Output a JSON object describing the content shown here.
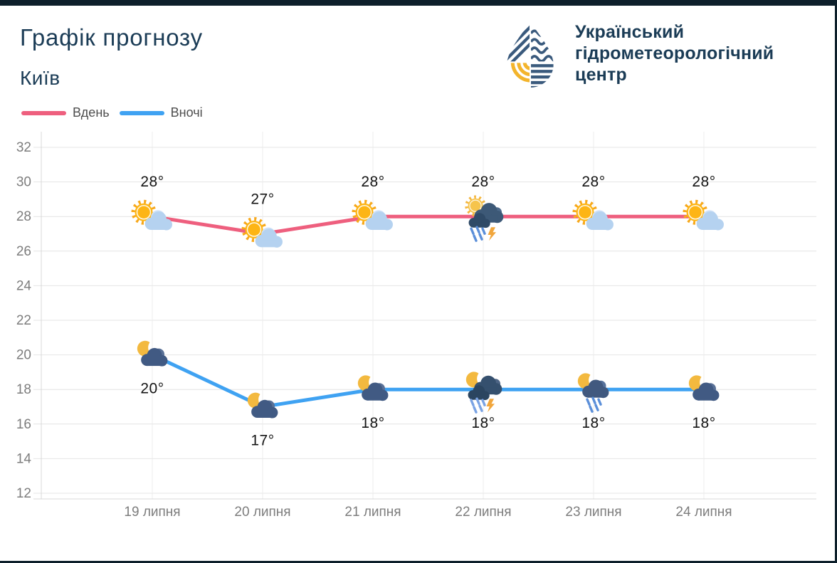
{
  "header": {
    "title": "Графік прогнозу",
    "subtitle": "Київ",
    "legend": [
      {
        "label": "Вдень",
        "color": "#ee5f7e"
      },
      {
        "label": "Вночі",
        "color": "#3fa2f2"
      }
    ]
  },
  "logo": {
    "line1": "Український",
    "line2": "гідрометеорологічний",
    "line3": "центр"
  },
  "colors": {
    "frame": "#0d1f2b",
    "heading": "#1b3c56",
    "grid": "#e4e4e4",
    "tick_text": "#7d7d7d",
    "day_line": "#ee5f7e",
    "night_line": "#3fa2f2"
  },
  "chart_data": {
    "type": "line",
    "title": "Графік прогнозу",
    "subtitle": "Київ",
    "categories": [
      "19 липня",
      "20 липня",
      "21 липня",
      "22 липня",
      "23 липня",
      "24 липня"
    ],
    "series": [
      {
        "name": "Вдень",
        "color": "#ee5f7e",
        "values": [
          28,
          27,
          28,
          28,
          28,
          28
        ],
        "labels": [
          "28°",
          "27°",
          "28°",
          "28°",
          "28°",
          "28°"
        ],
        "icons": [
          "sun-cloud",
          "sun-cloud",
          "sun-cloud",
          "sun-storm",
          "sun-cloud",
          "sun-cloud"
        ],
        "label_position": "above"
      },
      {
        "name": "Вночі",
        "color": "#3fa2f2",
        "values": [
          20,
          17,
          18,
          18,
          18,
          18
        ],
        "labels": [
          "20°",
          "17°",
          "18°",
          "18°",
          "18°",
          "18°"
        ],
        "icons": [
          "moon-cloud",
          "moon-cloud",
          "moon-cloud",
          "moon-storm",
          "moon-rain",
          "moon-cloud"
        ],
        "label_position": "below"
      }
    ],
    "ylim": [
      12,
      32
    ],
    "ytick_step": 2,
    "grid": true,
    "legend_position": "top-left"
  }
}
